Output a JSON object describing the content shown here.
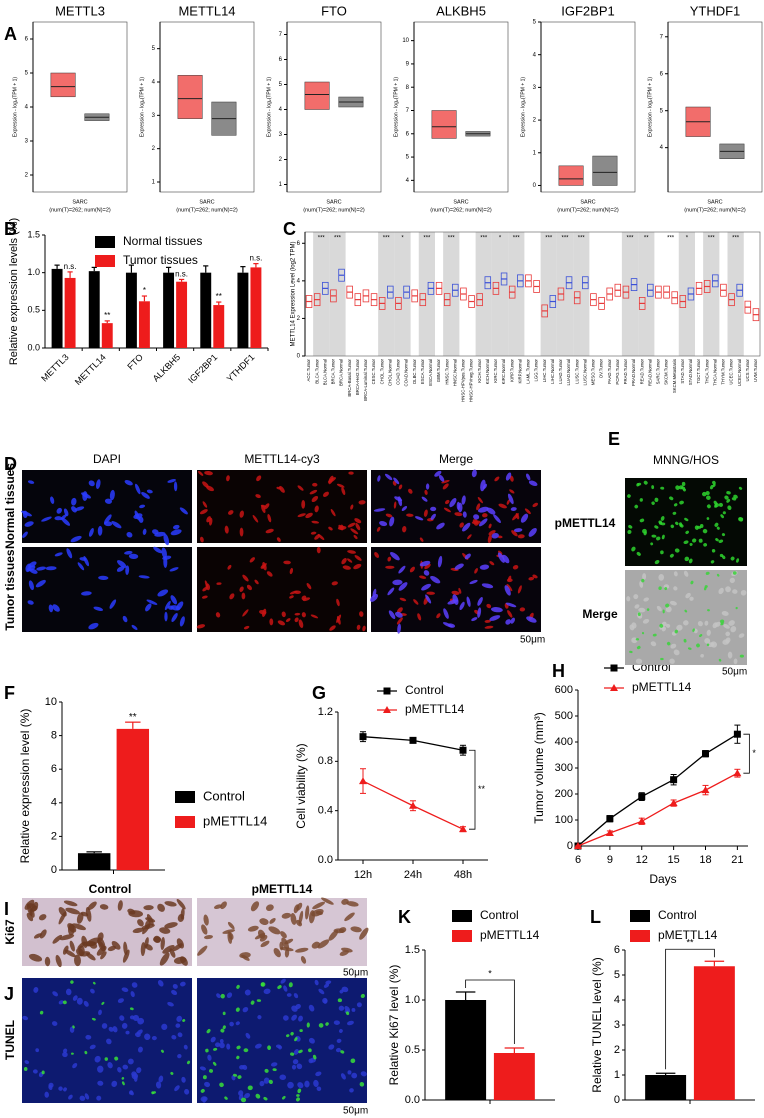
{
  "figure": {
    "labels": [
      "A",
      "B",
      "C",
      "D",
      "E",
      "F",
      "G",
      "H",
      "I",
      "J",
      "K",
      "L"
    ],
    "D": {
      "columns": [
        "DAPI",
        "METTL14-cy3",
        "Merge"
      ],
      "rows": [
        "Normal tissues",
        "Tumor tissues"
      ],
      "scale": "50μm"
    },
    "E": {
      "title": "MNNG/HOS",
      "rows": [
        "pMETTL14",
        "Merge"
      ],
      "scale": "50μm"
    },
    "I": {
      "columns": [
        "Control",
        "pMETTL14"
      ],
      "rows": [
        "Ki67"
      ],
      "scale": "50μm"
    },
    "J": {
      "rows": [
        "TUNEL"
      ],
      "scale": "50μm"
    }
  },
  "chart_data": [
    {
      "type": "box",
      "title": "METTL3",
      "ylabel": "Expression - log₂(TPM + 1)",
      "xlabel": "SARC",
      "xnote": "(num(T)=262; num(N)=2)",
      "ylim": [
        1.5,
        6.5
      ],
      "yticks": [
        2,
        3,
        4,
        5,
        6
      ],
      "boxes": [
        {
          "color": "#f26d6b",
          "q1": 4.3,
          "median": 4.6,
          "q3": 5.0
        },
        {
          "color": "#8a8a8a",
          "q1": 3.6,
          "median": 3.7,
          "q3": 3.8
        }
      ]
    },
    {
      "type": "box",
      "title": "METTL14",
      "ylabel": "Expression - log₂(TPM + 1)",
      "xlabel": "SARC",
      "xnote": "(num(T)=262; num(N)=2)",
      "ylim": [
        0.7,
        5.8
      ],
      "yticks": [
        1,
        2,
        3,
        4,
        5
      ],
      "boxes": [
        {
          "color": "#f26d6b",
          "q1": 2.9,
          "median": 3.5,
          "q3": 4.2
        },
        {
          "color": "#8a8a8a",
          "q1": 2.4,
          "median": 2.9,
          "q3": 3.4
        }
      ]
    },
    {
      "type": "box",
      "title": "FTO",
      "ylabel": "Expression - log₂(TPM + 1)",
      "xlabel": "SARC",
      "xnote": "(num(T)=262; num(N)=2)",
      "ylim": [
        0.7,
        7.5
      ],
      "yticks": [
        1,
        2,
        3,
        4,
        5,
        6,
        7
      ],
      "boxes": [
        {
          "color": "#f26d6b",
          "q1": 4.0,
          "median": 4.6,
          "q3": 5.1
        },
        {
          "color": "#8a8a8a",
          "q1": 4.1,
          "median": 4.3,
          "q3": 4.5
        }
      ]
    },
    {
      "type": "box",
      "title": "ALKBH5",
      "ylabel": "Expression - log₂(TPM + 1)",
      "xlabel": "SARC",
      "xnote": "(num(T)=262; num(N)=2)",
      "ylim": [
        3.5,
        10.8
      ],
      "yticks": [
        4,
        5,
        6,
        7,
        8,
        9,
        10
      ],
      "boxes": [
        {
          "color": "#f26d6b",
          "q1": 5.8,
          "median": 6.3,
          "q3": 7.0
        },
        {
          "color": "#8a8a8a",
          "q1": 5.9,
          "median": 6.0,
          "q3": 6.1
        }
      ]
    },
    {
      "type": "box",
      "title": "IGF2BP1",
      "ylabel": "Expression - log₂(TPM + 1)",
      "xlabel": "SARC",
      "xnote": "(num(T)=262; num(N)=2)",
      "ylim": [
        -0.2,
        5
      ],
      "yticks": [
        0,
        1,
        2,
        3,
        4,
        5
      ],
      "boxes": [
        {
          "color": "#f26d6b",
          "q1": 0,
          "median": 0.2,
          "q3": 0.6
        },
        {
          "color": "#8a8a8a",
          "q1": 0,
          "median": 0.4,
          "q3": 0.9
        }
      ]
    },
    {
      "type": "box",
      "title": "YTHDF1",
      "ylabel": "Expression - log₂(TPM + 1)",
      "xlabel": "SARC",
      "xnote": "(num(T)=262; num(N)=2)",
      "ylim": [
        2.8,
        7.4
      ],
      "yticks": [
        4,
        5,
        6,
        7
      ],
      "boxes": [
        {
          "color": "#f26d6b",
          "q1": 4.3,
          "median": 4.7,
          "q3": 5.1
        },
        {
          "color": "#8a8a8a",
          "q1": 3.7,
          "median": 3.9,
          "q3": 4.1
        }
      ]
    },
    {
      "type": "bar",
      "ylabel": "Relative expression levels (%)",
      "categories": [
        "METTL3",
        "METTL14",
        "FTO",
        "ALKBH5",
        "IGF2BP1",
        "YTHDF1"
      ],
      "ylim": [
        0,
        1.5
      ],
      "yticks": [
        {
          "value": 0,
          "label": "0.0"
        },
        {
          "value": 0.5,
          "label": "0.5"
        },
        {
          "value": 1,
          "label": "1.0"
        },
        {
          "value": 1.5,
          "label": "1.5"
        }
      ],
      "series": [
        {
          "name": "Normal tissues",
          "color": "#000000",
          "values": [
            1.05,
            1.02,
            1.0,
            1.0,
            1.0,
            1.0
          ],
          "errors": [
            0.05,
            0.05,
            0.1,
            0.07,
            0.09,
            0.08
          ]
        },
        {
          "name": "Tumor tissues",
          "color": "#ee1c1c",
          "values": [
            0.93,
            0.33,
            0.62,
            0.88,
            0.57,
            1.07
          ],
          "errors": [
            0.08,
            0.03,
            0.07,
            0.03,
            0.04,
            0.05
          ],
          "annotations": [
            "n.s.",
            "**",
            "*",
            "n.s.",
            "**",
            "n.s."
          ]
        }
      ]
    },
    {
      "type": "distribution",
      "ylabel": "METTL14 Expression Level (log2 TPM)",
      "ylim": [
        0,
        6.6
      ],
      "yticks": [
        0,
        2,
        4,
        6
      ],
      "colors": {
        "Tumor": "#e83a3a",
        "Normal": "#3a50d8"
      },
      "categories": [
        "ACC.Tumor",
        "BLCA.Tumor",
        "BLCA.Normal",
        "BRCA.Tumor",
        "BRCA.Normal",
        "BRCA-Basal.Tumor",
        "BRCA-Her2.Tumor",
        "BRCA-Luminal.Tumor",
        "CESC.Tumor",
        "CHOL.Tumor",
        "CHOL.Normal",
        "COAD.Tumor",
        "COAD.Normal",
        "DLBC.Tumor",
        "ESCA.Tumor",
        "ESCA.Normal",
        "GBM.Tumor",
        "HNSC.Tumor",
        "HNSC.Normal",
        "HNSC-HPVpos.Tumor",
        "HNSC-HPVneg.Tumor",
        "KICH.Tumor",
        "KICH.Normal",
        "KIRC.Tumor",
        "KIRC.Normal",
        "KIRP.Tumor",
        "KIRP.Normal",
        "LAML.Tumor",
        "LGG.Tumor",
        "LIHC.Tumor",
        "LIHC.Normal",
        "LUAD.Tumor",
        "LUAD.Normal",
        "LUSC.Tumor",
        "LUSC.Normal",
        "MESO.Tumor",
        "OV.Tumor",
        "PAAD.Tumor",
        "PCPG.Tumor",
        "PRAD.Tumor",
        "PRAD.Normal",
        "READ.Tumor",
        "READ.Normal",
        "SARC.Tumor",
        "SKCM.Tumor",
        "SKCM.Metastasis",
        "STAD.Tumor",
        "STAD.Normal",
        "TGCT.Tumor",
        "THCA.Tumor",
        "THCA.Normal",
        "THYM.Tumor",
        "UCEC.Tumor",
        "UCEC.Normal",
        "UCS.Tumor",
        "UVM.Tumor"
      ],
      "values": [
        2.9,
        3.0,
        3.6,
        3.2,
        4.3,
        3.4,
        3.0,
        3.2,
        3.0,
        2.8,
        3.4,
        2.8,
        3.4,
        3.2,
        3.0,
        3.6,
        3.6,
        3.0,
        3.5,
        3.3,
        2.9,
        3.0,
        3.9,
        3.6,
        4.1,
        3.4,
        4.0,
        4.0,
        3.7,
        2.4,
        2.9,
        3.3,
        3.9,
        3.1,
        3.9,
        3.0,
        2.8,
        3.3,
        3.5,
        3.4,
        3.8,
        2.8,
        3.5,
        3.4,
        3.4,
        3.1,
        2.9,
        3.3,
        3.6,
        3.7,
        4.0,
        3.5,
        3.0,
        3.5,
        2.6,
        2.2
      ],
      "annotations": [
        null,
        "***",
        null,
        "***",
        null,
        null,
        null,
        null,
        null,
        "***",
        null,
        "*",
        null,
        null,
        "***",
        null,
        null,
        "***",
        null,
        null,
        null,
        "***",
        null,
        "*",
        null,
        "***",
        null,
        null,
        null,
        "***",
        null,
        "***",
        null,
        "***",
        null,
        null,
        null,
        null,
        null,
        "***",
        null,
        "**",
        null,
        null,
        "***",
        null,
        "*",
        null,
        null,
        "***",
        null,
        null,
        "***",
        null,
        null,
        null
      ]
    },
    {
      "type": "bar",
      "ylabel": "Relative expression level (%)",
      "ylim": [
        0,
        10
      ],
      "yticks": [
        0,
        2,
        4,
        6,
        8,
        10
      ],
      "series": [
        {
          "name": "Control",
          "color": "#000000",
          "values": [
            1.0
          ],
          "errors": [
            0.08
          ]
        },
        {
          "name": "pMETTL14",
          "color": "#ee1c1c",
          "values": [
            8.4
          ],
          "errors": [
            0.4
          ],
          "annotations": [
            "**"
          ]
        }
      ]
    },
    {
      "type": "line",
      "ylabel": "Cell viability (%)",
      "categories": [
        "12h",
        "24h",
        "48h"
      ],
      "ylim": [
        0,
        1.2
      ],
      "yticks": [
        {
          "value": 0,
          "label": "0.0"
        },
        {
          "value": 0.4,
          "label": "0.4"
        },
        {
          "value": 0.8,
          "label": "0.8"
        },
        {
          "value": 1.2,
          "label": "1.2"
        }
      ],
      "bracket": "**",
      "series": [
        {
          "name": "Control",
          "color": "#000000",
          "marker": "square",
          "values": [
            1.0,
            0.97,
            0.89
          ],
          "errors": [
            0.04,
            0.02,
            0.04
          ]
        },
        {
          "name": "pMETTL14",
          "color": "#ee1c1c",
          "marker": "triangle",
          "values": [
            0.64,
            0.44,
            0.25
          ],
          "errors": [
            0.1,
            0.04,
            0.02
          ]
        }
      ]
    },
    {
      "type": "line",
      "ylabel": "Tumor volume (mm³)",
      "xlabel": "Days",
      "x": [
        6,
        9,
        12,
        15,
        18,
        21
      ],
      "xlim": [
        6,
        22
      ],
      "xticks": [
        6,
        9,
        12,
        15,
        18,
        21
      ],
      "ylim": [
        0,
        600
      ],
      "yticks": [
        0,
        100,
        200,
        300,
        400,
        500,
        600
      ],
      "bracket": "*",
      "series": [
        {
          "name": "Control",
          "color": "#000000",
          "marker": "square",
          "values": [
            0,
            105,
            190,
            255,
            355,
            430
          ],
          "errors": [
            0,
            12,
            15,
            20,
            12,
            35
          ]
        },
        {
          "name": "pMETTL14",
          "color": "#ee1c1c",
          "marker": "triangle",
          "values": [
            0,
            50,
            95,
            165,
            215,
            280
          ],
          "errors": [
            0,
            8,
            12,
            12,
            18,
            15
          ]
        }
      ]
    },
    {
      "type": "bar",
      "ylabel": "Relative Ki67 level (%)",
      "ylim": [
        0,
        1.5
      ],
      "bracket": "*",
      "yticks": [
        {
          "value": 0,
          "label": "0.0"
        },
        {
          "value": 0.5,
          "label": "0.5"
        },
        {
          "value": 1,
          "label": "1.0"
        },
        {
          "value": 1.5,
          "label": "1.5"
        }
      ],
      "series": [
        {
          "name": "Control",
          "color": "#000000",
          "values": [
            1.0
          ],
          "errors": [
            0.08
          ]
        },
        {
          "name": "pMETTL14",
          "color": "#ee1c1c",
          "values": [
            0.47
          ],
          "errors": [
            0.05
          ]
        }
      ]
    },
    {
      "type": "bar",
      "ylabel": "Relative TUNEL level (%)",
      "ylim": [
        0,
        6
      ],
      "yticks": [
        0,
        1,
        2,
        3,
        4,
        5,
        6
      ],
      "bracket": "**",
      "series": [
        {
          "name": "Control",
          "color": "#000000",
          "values": [
            1.0
          ],
          "errors": [
            0.07
          ]
        },
        {
          "name": "pMETTL14",
          "color": "#ee1c1c",
          "values": [
            5.35
          ],
          "errors": [
            0.2
          ]
        }
      ]
    }
  ]
}
